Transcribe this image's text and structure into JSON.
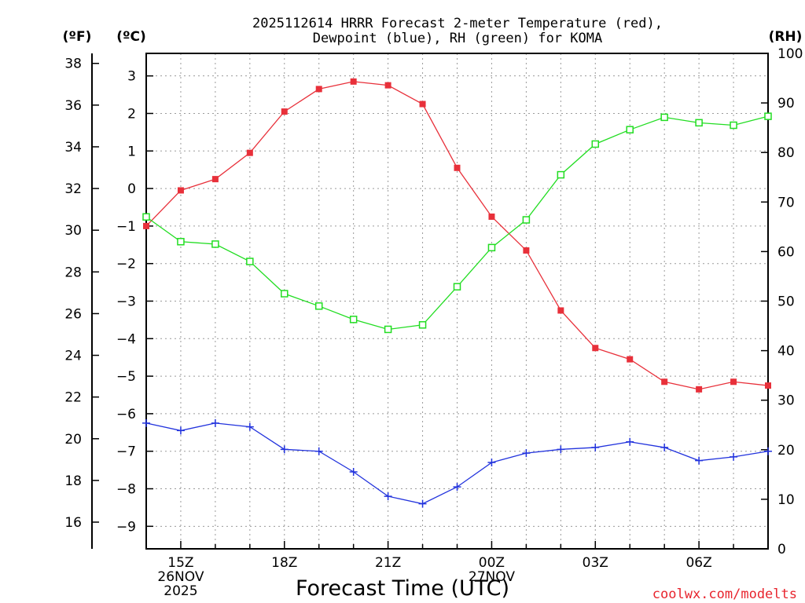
{
  "chart_data": {
    "type": "line",
    "title_line1": "2025112614 HRRR Forecast 2-meter Temperature (red),",
    "title_line2": "Dewpoint (blue), RH (green) for KOMA",
    "unit_f": "(ºF)",
    "unit_c": "(ºC)",
    "unit_rh": "(RH)",
    "xlabel": "Forecast Time (UTC)",
    "credit": "coolwx.com/modelts",
    "xlim": [
      14,
      32
    ],
    "ylim_c": [
      -9.6,
      3.6
    ],
    "ylim_rh": [
      0,
      100
    ],
    "f_ticks": [
      "38",
      "36",
      "34",
      "32",
      "30",
      "28",
      "26",
      "24",
      "22",
      "20",
      "18",
      "16"
    ],
    "c_ticks": [
      "3",
      "2",
      "1",
      "0",
      "−1",
      "−2",
      "−3",
      "−4",
      "−5",
      "−6",
      "−7",
      "−8",
      "−9"
    ],
    "rh_ticks": [
      "100",
      "90",
      "80",
      "70",
      "60",
      "50",
      "40",
      "30",
      "20",
      "10",
      "0"
    ],
    "x_ticks": [
      {
        "hour": 15,
        "lines": [
          "15Z",
          "26NOV",
          "2025"
        ]
      },
      {
        "hour": 18,
        "lines": [
          "18Z"
        ]
      },
      {
        "hour": 21,
        "lines": [
          "21Z"
        ]
      },
      {
        "hour": 24,
        "lines": [
          "00Z",
          "27NOV"
        ]
      },
      {
        "hour": 27,
        "lines": [
          "03Z"
        ]
      },
      {
        "hour": 30,
        "lines": [
          "06Z"
        ]
      }
    ],
    "x": [
      14,
      15,
      16,
      17,
      18,
      19,
      20,
      21,
      22,
      23,
      24,
      25,
      26,
      27,
      28,
      29,
      30,
      31,
      32
    ],
    "series": [
      {
        "name": "2-meter Temperature",
        "axis": "C",
        "color": "#e8303a",
        "marker": "filled-square",
        "values": [
          -1.0,
          -0.05,
          0.25,
          0.95,
          2.05,
          2.65,
          2.85,
          2.75,
          2.25,
          0.55,
          -0.75,
          -1.65,
          -3.25,
          -4.25,
          -4.55,
          -5.15,
          -5.35,
          -5.15,
          -5.25
        ]
      },
      {
        "name": "Dewpoint",
        "axis": "C",
        "color": "#2233dd",
        "marker": "plus",
        "values": [
          -6.25,
          -6.45,
          -6.25,
          -6.35,
          -6.95,
          -7.0,
          -7.55,
          -8.2,
          -8.4,
          -7.95,
          -7.3,
          -7.05,
          -6.95,
          -6.9,
          -6.75,
          -6.9,
          -7.25,
          -7.15,
          -7.0
        ]
      },
      {
        "name": "RH",
        "axis": "RH",
        "color": "#22dd22",
        "marker": "open-square",
        "values": [
          67.0,
          62.0,
          61.5,
          58.0,
          51.5,
          49.0,
          46.3,
          44.3,
          45.2,
          52.9,
          60.8,
          66.4,
          75.5,
          81.7,
          84.6,
          87.1,
          86.0,
          85.5,
          87.3
        ]
      }
    ]
  }
}
